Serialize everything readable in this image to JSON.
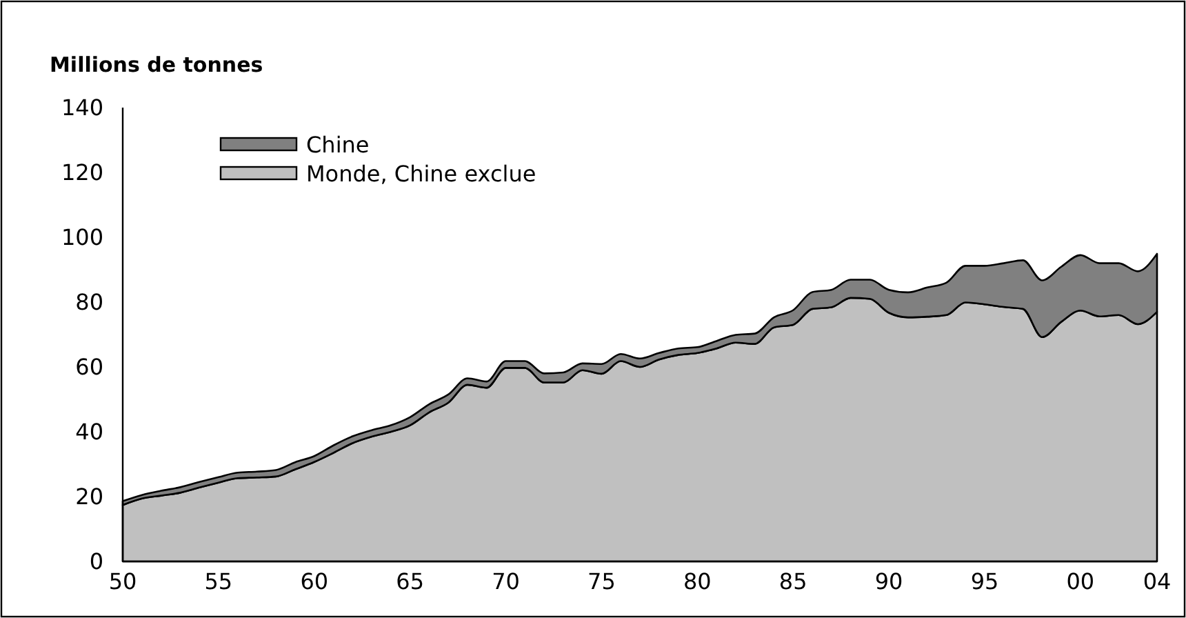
{
  "chart_data": {
    "type": "area",
    "stacked": true,
    "title": "Millions de tonnes",
    "x": [
      1950,
      1951,
      1952,
      1953,
      1954,
      1955,
      1956,
      1957,
      1958,
      1959,
      1960,
      1961,
      1962,
      1963,
      1964,
      1965,
      1966,
      1967,
      1968,
      1969,
      1970,
      1971,
      1972,
      1973,
      1974,
      1975,
      1976,
      1977,
      1978,
      1979,
      1980,
      1981,
      1982,
      1983,
      1984,
      1985,
      1986,
      1987,
      1988,
      1989,
      1990,
      1991,
      1992,
      1993,
      1994,
      1995,
      1996,
      1997,
      1998,
      1999,
      2000,
      2001,
      2002,
      2003,
      2004
    ],
    "series": [
      {
        "name": "Monde, Chine exclue",
        "color": "#c0c0c0",
        "values": [
          17.4,
          19.4,
          20.3,
          21.2,
          22.8,
          24.3,
          25.7,
          25.9,
          26.2,
          28.4,
          30.7,
          33.5,
          36.5,
          38.5,
          40,
          42,
          46,
          49,
          54.5,
          53.6,
          59.7,
          59.7,
          55.2,
          55.2,
          59,
          57.9,
          61.8,
          60,
          62.3,
          63.7,
          64.3,
          65.7,
          67.5,
          67.1,
          72.2,
          73,
          77.9,
          78.4,
          81.3,
          81,
          76.7,
          75.3,
          75.5,
          76,
          79.9,
          79.3,
          78.5,
          77.9,
          69.2,
          73.9,
          77.4,
          75.6,
          76,
          73.2,
          77
        ]
      },
      {
        "name": "Chine",
        "color": "#808080",
        "values": [
          1.2,
          1.1,
          1.5,
          1.7,
          1.7,
          1.7,
          1.7,
          1.8,
          2,
          2.2,
          1.8,
          2.3,
          2.1,
          2,
          2,
          2.5,
          2.5,
          2.5,
          2,
          1.9,
          2.1,
          2.1,
          2.8,
          3.1,
          2.1,
          3,
          2.2,
          2.6,
          2,
          2,
          1.8,
          2.3,
          2.4,
          3.2,
          3.1,
          4.5,
          5.2,
          5.4,
          5.6,
          5.9,
          7.1,
          7.7,
          9,
          10,
          11.3,
          11.9,
          13.5,
          15,
          17.5,
          17,
          17.1,
          16.4,
          16,
          16.3,
          17.9
        ]
      }
    ],
    "xlim": [
      1950,
      2004
    ],
    "xticks": [
      {
        "value": 1950,
        "label": "50"
      },
      {
        "value": 1955,
        "label": "55"
      },
      {
        "value": 1960,
        "label": "60"
      },
      {
        "value": 1965,
        "label": "65"
      },
      {
        "value": 1970,
        "label": "70"
      },
      {
        "value": 1975,
        "label": "75"
      },
      {
        "value": 1980,
        "label": "80"
      },
      {
        "value": 1985,
        "label": "85"
      },
      {
        "value": 1990,
        "label": "90"
      },
      {
        "value": 1995,
        "label": "95"
      },
      {
        "value": 2000,
        "label": "00"
      },
      {
        "value": 2004,
        "label": "04"
      }
    ],
    "ylim": [
      0,
      140
    ],
    "yticks": [
      0,
      20,
      40,
      60,
      80,
      100,
      120,
      140
    ],
    "legend": "top left",
    "grid": false
  }
}
